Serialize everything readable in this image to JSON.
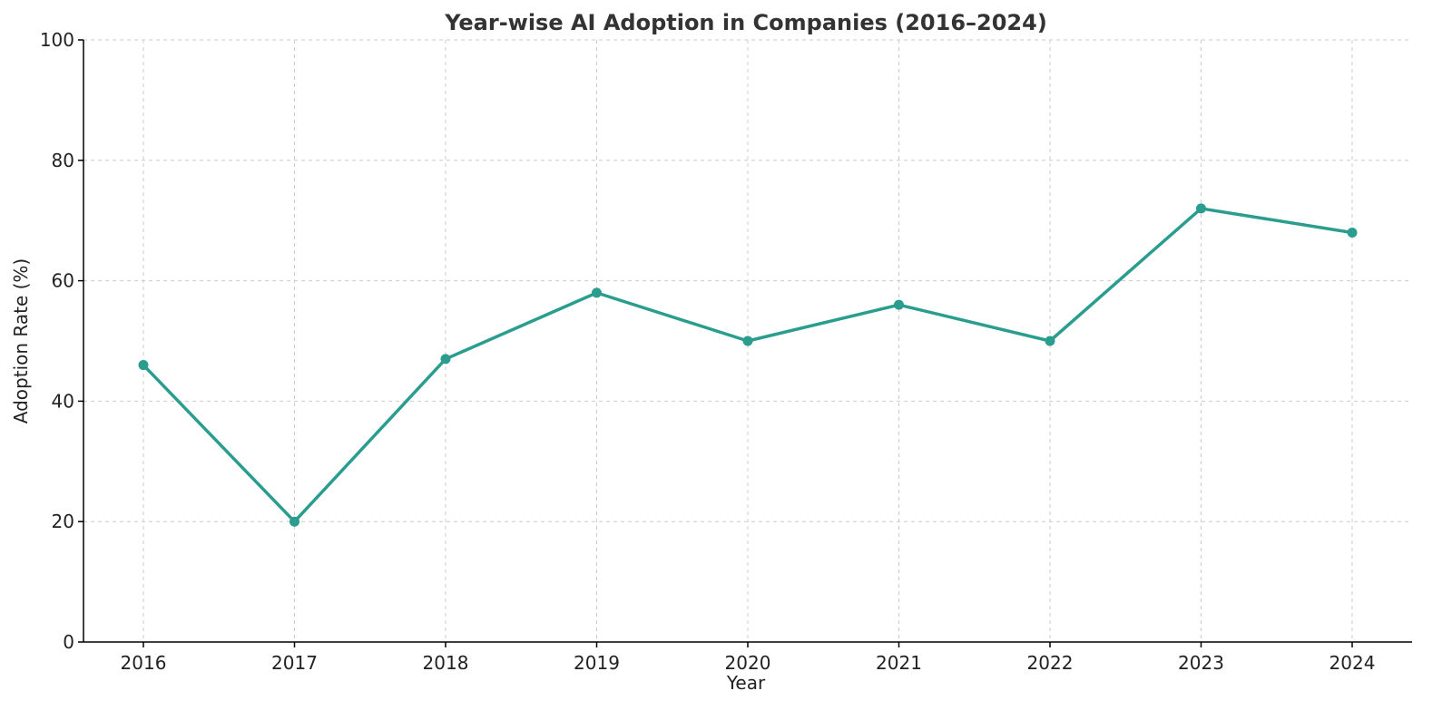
{
  "chart_data": {
    "type": "line",
    "title": "Year-wise AI Adoption in Companies (2016–2024)",
    "xlabel": "Year",
    "ylabel": "Adoption Rate (%)",
    "categories": [
      "2016",
      "2017",
      "2018",
      "2019",
      "2020",
      "2021",
      "2022",
      "2023",
      "2024"
    ],
    "series": [
      {
        "name": "Adoption Rate",
        "values": [
          46,
          20,
          47,
          58,
          50,
          56,
          50,
          72,
          68
        ]
      }
    ],
    "ylim": [
      0,
      100
    ],
    "yticks": [
      "0",
      "20",
      "40",
      "60",
      "80",
      "100"
    ],
    "grid": true,
    "colors": {
      "line": "#2a9d8f",
      "marker": "#2a9d8f"
    }
  }
}
